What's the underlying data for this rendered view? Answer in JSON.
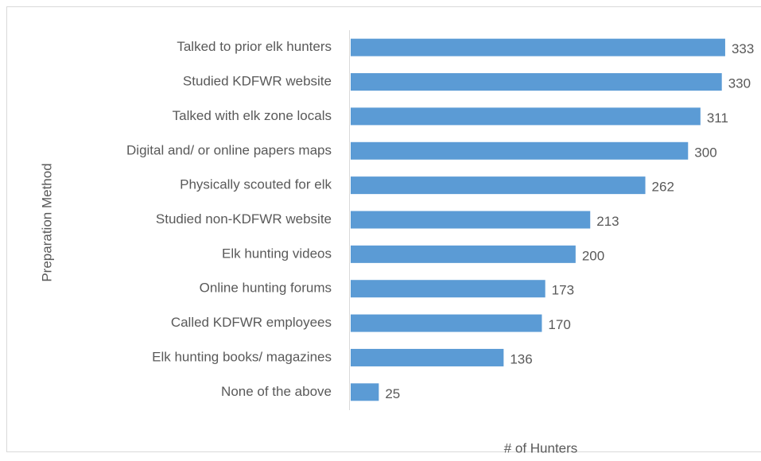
{
  "chart_data": {
    "type": "bar",
    "orientation": "horizontal",
    "x_label": "# of Hunters",
    "y_label": "Preparation Method",
    "categories": [
      "Talked to prior elk hunters",
      "Studied KDFWR website",
      "Talked with elk zone locals",
      "Digital and/ or online papers maps",
      "Physically scouted for elk",
      "Studied non-KDFWR website",
      "Elk hunting videos",
      "Online hunting forums",
      "Called KDFWR employees",
      "Elk hunting books/ magazines",
      "None of the above"
    ],
    "values": [
      333,
      330,
      311,
      300,
      262,
      213,
      200,
      173,
      170,
      136,
      25
    ],
    "color": "#5b9bd5",
    "xlim": [
      0,
      350
    ]
  }
}
